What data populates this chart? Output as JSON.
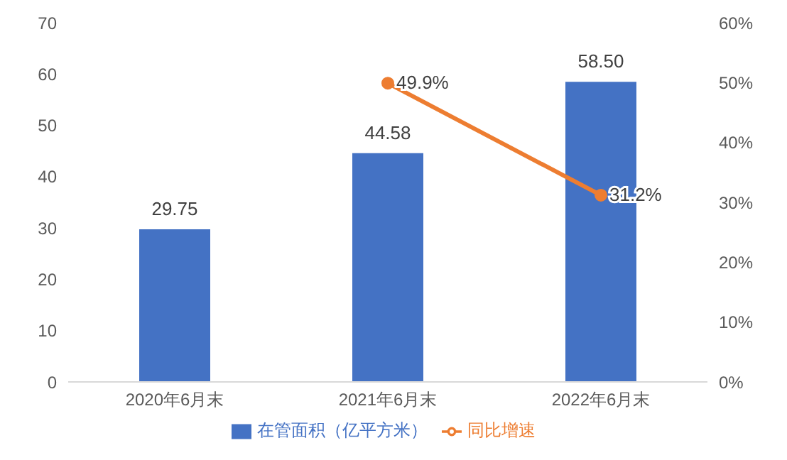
{
  "chart_data": {
    "type": "bar",
    "categories": [
      "2020年6月末",
      "2021年6月末",
      "2022年6月末"
    ],
    "series": [
      {
        "name": "在管面积（亿平方米）",
        "color": "#4472c4",
        "values": [
          29.75,
          44.58,
          58.5
        ],
        "value_labels": [
          "29.75",
          "44.58",
          "58.50"
        ]
      },
      {
        "name": "同比增速",
        "type": "line",
        "axis": "y2",
        "color": "#ed7d31",
        "values": [
          null,
          49.9,
          31.2
        ],
        "value_labels": [
          null,
          "49.9%",
          "31.2%"
        ]
      }
    ],
    "ylim": [
      0,
      70
    ],
    "yticks": [
      0,
      10,
      20,
      30,
      40,
      50,
      60,
      70
    ],
    "y2lim": [
      0,
      60
    ],
    "y2ticks": [
      {
        "value": 0,
        "label": "0%"
      },
      {
        "value": 10,
        "label": "10%"
      },
      {
        "value": 20,
        "label": "20%"
      },
      {
        "value": 30,
        "label": "30%"
      },
      {
        "value": 40,
        "label": "40%"
      },
      {
        "value": 50,
        "label": "50%"
      },
      {
        "value": 60,
        "label": "60%"
      }
    ],
    "legend": "bottom",
    "grid": false,
    "marker": "circle"
  }
}
